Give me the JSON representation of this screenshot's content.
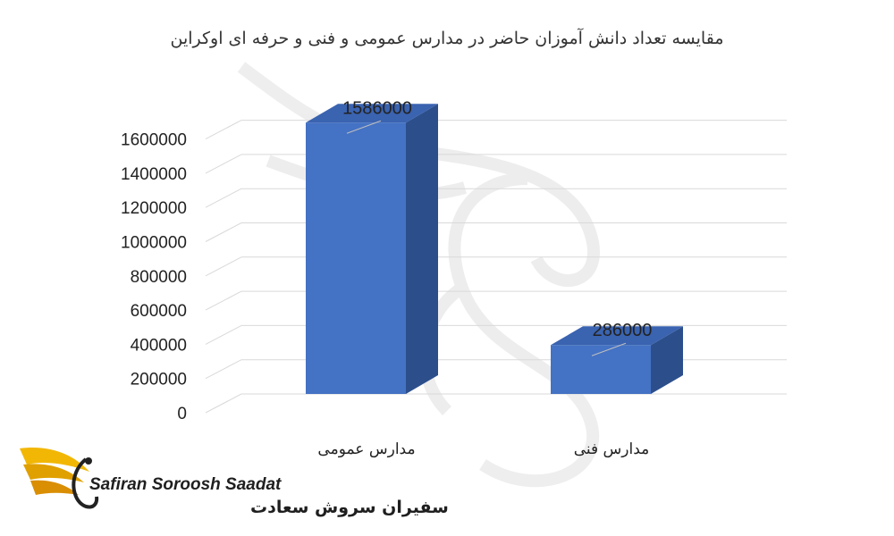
{
  "chart_data": {
    "type": "bar",
    "title": "مقایسه تعداد دانش آموزان حاضر در مدارس عمومی و فنی و حرفه ای اوکراین",
    "categories": [
      "مدارس عمومی",
      "مدارس فنی"
    ],
    "values": [
      1586000,
      286000
    ],
    "data_labels": [
      "1586000",
      "286000"
    ],
    "ylim": [
      0,
      1600000
    ],
    "yticks": [
      "0",
      "200000",
      "400000",
      "600000",
      "800000",
      "1000000",
      "1200000",
      "1400000",
      "1600000"
    ],
    "xlabel": "",
    "ylabel": "",
    "grid": true,
    "style": "3d-column",
    "bar_color": "#4472C4"
  },
  "watermark": {
    "brand_en": "Safiran Soroosh Saadat",
    "brand_fa": "سفیران سروش سعادت",
    "logo_colors": [
      "#F2B705",
      "#D98E04"
    ]
  }
}
